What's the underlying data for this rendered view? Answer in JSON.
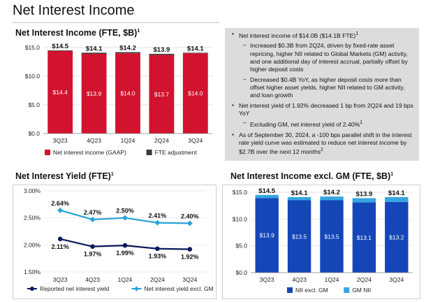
{
  "page_title": "Net Interest Income",
  "colors": {
    "nii_red": "#d2122e",
    "fte_dark": "#3a3a3a",
    "reported_navy": "#0a1a5c",
    "excl_gm_teal": "#2aa3d6",
    "nii_excl_gm_blue": "#1446b8",
    "gm_nii_light": "#35a6e0",
    "bullet_box_gray": "#dcdcdc"
  },
  "bullets": {
    "b1": "Net interest income of $14.0B ($14.1B FTE)",
    "b1_sup": "1",
    "b1_sub1": "Increased $0.3B from 2Q24, driven by fixed-rate asset repricing, higher NII related to Global Markets (GM) activity, and one additional day of interest accrual, partially offset by higher deposit costs",
    "b1_sub2": "Decreased $0.4B YoY, as higher deposit costs more than offset higher asset yields, higher NII related to GM activity, and loan growth",
    "b2": "Net interest yield of 1.92% decreased 1 bp from 2Q24 and 19 bps YoY",
    "b2_sub1": "Excluding GM, net interest yield of 2.40%",
    "b2_sub1_sup": "1",
    "b3": "As of September 30, 2024, a -100 bps parallel shift in the interest rate yield curve was estimated to reduce net interest income by $2.7B over the next 12 months",
    "b3_sup": "2"
  },
  "chart_data": [
    {
      "type": "bar",
      "title": "Net Interest Income (FTE, $B)",
      "title_sup": "1",
      "categories": [
        "3Q23",
        "4Q23",
        "1Q24",
        "2Q24",
        "3Q24"
      ],
      "ylim": [
        0,
        15
      ],
      "yticks": [
        "$0.0",
        "$5.0",
        "$10.0",
        "$15.0"
      ],
      "ytick_values": [
        0,
        5,
        10,
        15
      ],
      "totals": [
        "$14.5",
        "$14.1",
        "$14.2",
        "$13.9",
        "$14.1"
      ],
      "series": [
        {
          "name": "Net interest income (GAAP)",
          "values": [
            14.4,
            13.9,
            14.0,
            13.7,
            14.0
          ],
          "labels": [
            "$14.4",
            "$13.9",
            "$14.0",
            "$13.7",
            "$14.0"
          ]
        },
        {
          "name": "FTE adjustment",
          "values": [
            0.1,
            0.2,
            0.2,
            0.2,
            0.1
          ]
        }
      ],
      "legend": "bottom"
    },
    {
      "type": "line",
      "title": "Net Interest Yield (FTE)",
      "title_sup": "1",
      "categories": [
        "3Q23",
        "4Q23",
        "1Q24",
        "2Q24",
        "3Q24"
      ],
      "ylim": [
        1.5,
        3.0
      ],
      "yticks": [
        "1.50%",
        "2.00%",
        "2.50%",
        "3.00%"
      ],
      "ytick_values": [
        1.5,
        2.0,
        2.5,
        3.0
      ],
      "series": [
        {
          "name": "Reported net interest yield",
          "values": [
            2.11,
            1.97,
            1.99,
            1.93,
            1.92
          ],
          "labels": [
            "2.11%",
            "1.97%",
            "1.99%",
            "1.93%",
            "1.92%"
          ]
        },
        {
          "name": "Net interest yield excl. GM",
          "values": [
            2.64,
            2.47,
            2.5,
            2.41,
            2.4
          ],
          "labels": [
            "2.64%",
            "2.47%",
            "2.50%",
            "2.41%",
            "2.40%"
          ]
        }
      ],
      "legend": "bottom"
    },
    {
      "type": "bar",
      "title": "Net Interest Income excl. GM (FTE, $B)",
      "title_sup": "1",
      "categories": [
        "3Q23",
        "4Q23",
        "1Q24",
        "2Q24",
        "3Q24"
      ],
      "ylim": [
        0,
        15
      ],
      "yticks": [
        "$0.0",
        "$5.0",
        "$10.0",
        "$15.0"
      ],
      "ytick_values": [
        0,
        5,
        10,
        15
      ],
      "totals": [
        "$14.5",
        "$14.1",
        "$14.2",
        "$13.9",
        "$14.1"
      ],
      "series": [
        {
          "name": "NII excl. GM",
          "values": [
            13.9,
            13.5,
            13.5,
            13.1,
            13.2
          ],
          "labels": [
            "$13.9",
            "$13.5",
            "$13.5",
            "$13.1",
            "$13.2"
          ]
        },
        {
          "name": "GM NII",
          "values": [
            0.6,
            0.6,
            0.7,
            0.8,
            0.9
          ]
        }
      ],
      "legend": "bottom"
    }
  ]
}
